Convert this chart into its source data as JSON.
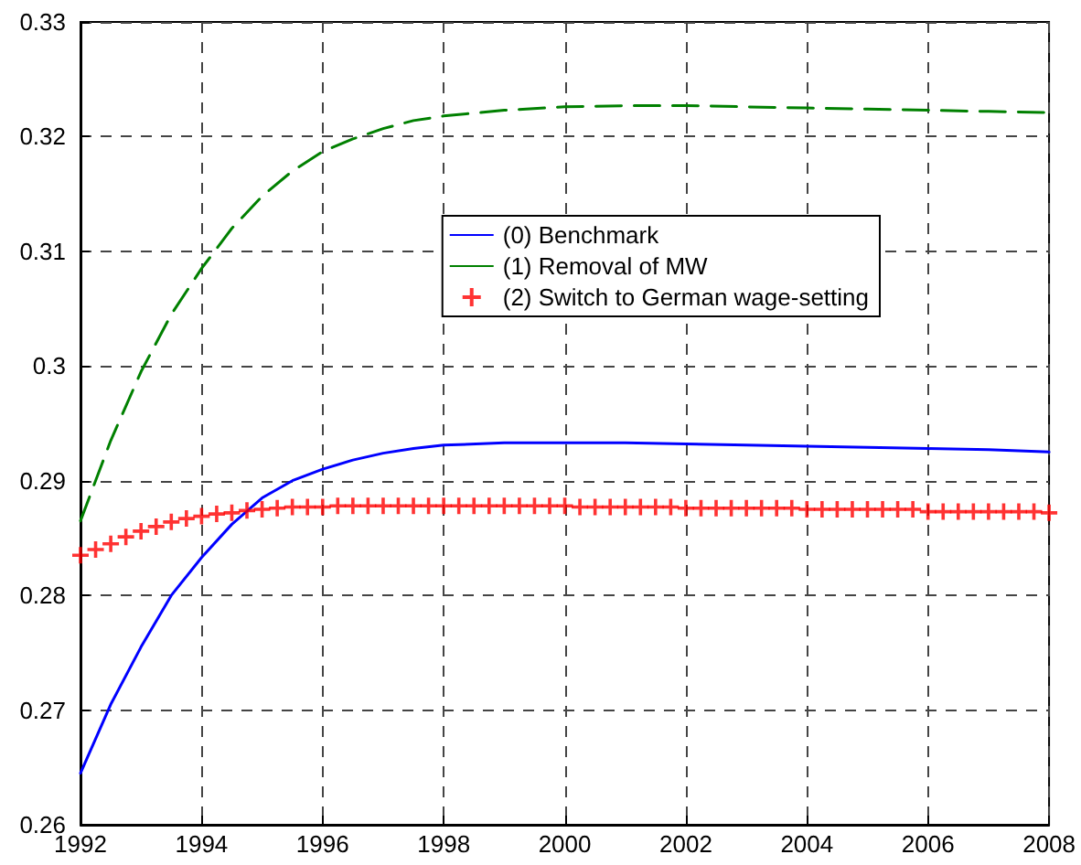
{
  "chart_data": {
    "type": "line",
    "xlim": [
      1992,
      2008
    ],
    "xticks": [
      1992,
      1994,
      1996,
      1998,
      2000,
      2002,
      2004,
      2006,
      2008
    ],
    "ylim": [
      0.26,
      0.33
    ],
    "yticks": [
      0.26,
      0.27,
      0.28,
      0.29,
      {
        "value": 0.3,
        "label": "0.3"
      },
      0.31,
      0.32,
      0.33
    ],
    "grid": true,
    "legend": "right",
    "series": [
      {
        "name": "(0) Benchmark",
        "color": "#0000ff",
        "line_style": "solid",
        "marker": "none",
        "x": [
          1992,
          1992.5,
          1993,
          1993.5,
          1994,
          1994.5,
          1995,
          1995.5,
          1996,
          1996.5,
          1997,
          1997.5,
          1998,
          1999,
          2000,
          2001,
          2002,
          2003,
          2004,
          2005,
          2006,
          2007,
          2008
        ],
        "values": [
          0.2645,
          0.2705,
          0.2755,
          0.28,
          0.2833,
          0.2862,
          0.2885,
          0.29,
          0.291,
          0.2918,
          0.2924,
          0.2928,
          0.2931,
          0.2933,
          0.2933,
          0.2933,
          0.2932,
          0.2931,
          0.293,
          0.2929,
          0.2928,
          0.2927,
          0.2925
        ]
      },
      {
        "name": "(1) Removal of MW",
        "color": "#008000",
        "line_style": "dashed",
        "marker": "none",
        "x": [
          1992,
          1992.5,
          1993,
          1993.5,
          1994,
          1994.5,
          1995,
          1995.5,
          1996,
          1996.5,
          1997,
          1997.5,
          1998,
          1999,
          2000,
          2001,
          2002,
          2003,
          2004,
          2005,
          2006,
          2007,
          2008
        ],
        "values": [
          0.2865,
          0.2935,
          0.2995,
          0.3045,
          0.3085,
          0.312,
          0.3148,
          0.317,
          0.3187,
          0.3198,
          0.3207,
          0.3214,
          0.3218,
          0.3223,
          0.3226,
          0.3227,
          0.3227,
          0.3226,
          0.3225,
          0.3224,
          0.3223,
          0.3222,
          0.3221
        ]
      },
      {
        "name": "(2) Switch to German wage-setting",
        "type": "scatter",
        "color": "#ff0000",
        "marker": "cross",
        "x": [
          1992,
          1992.25,
          1992.5,
          1992.75,
          1993,
          1993.25,
          1993.5,
          1993.75,
          1994,
          1994.25,
          1994.5,
          1994.75,
          1995,
          1995.25,
          1995.5,
          1995.75,
          1996,
          1996.25,
          1996.5,
          1996.75,
          1997,
          1997.25,
          1997.5,
          1997.75,
          1998,
          1998.25,
          1998.5,
          1998.75,
          1999,
          1999.25,
          1999.5,
          1999.75,
          2000,
          2000.25,
          2000.5,
          2000.75,
          2001,
          2001.25,
          2001.5,
          2001.75,
          2002,
          2002.25,
          2002.5,
          2002.75,
          2003,
          2003.25,
          2003.5,
          2003.75,
          2004,
          2004.25,
          2004.5,
          2004.75,
          2005,
          2005.25,
          2005.5,
          2005.75,
          2006,
          2006.25,
          2006.5,
          2006.75,
          2007,
          2007.25,
          2007.5,
          2007.75,
          2008
        ],
        "values": [
          0.2835,
          0.284,
          0.2845,
          0.2851,
          0.2856,
          0.286,
          0.2864,
          0.2867,
          0.2869,
          0.2871,
          0.2872,
          0.2874,
          0.2875,
          0.2876,
          0.2877,
          0.2877,
          0.2877,
          0.2878,
          0.2878,
          0.2878,
          0.2878,
          0.2878,
          0.2878,
          0.2878,
          0.2878,
          0.2878,
          0.2878,
          0.2878,
          0.2878,
          0.2878,
          0.2878,
          0.2878,
          0.2878,
          0.2877,
          0.2877,
          0.2877,
          0.2877,
          0.2877,
          0.2877,
          0.2877,
          0.2876,
          0.2876,
          0.2876,
          0.2876,
          0.2876,
          0.2876,
          0.2876,
          0.2876,
          0.2875,
          0.2875,
          0.2875,
          0.2875,
          0.2875,
          0.2875,
          0.2875,
          0.2875,
          0.2873,
          0.2873,
          0.2873,
          0.2873,
          0.2873,
          0.2873,
          0.2873,
          0.2873,
          0.2872
        ]
      }
    ]
  }
}
